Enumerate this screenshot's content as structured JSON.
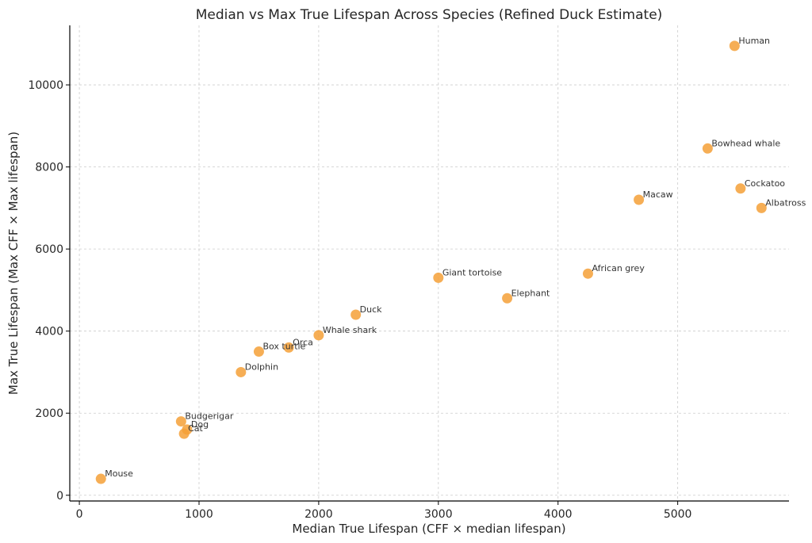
{
  "chart_data": {
    "type": "scatter",
    "title": "Median vs Max True Lifespan Across Species (Refined Duck Estimate)",
    "xlabel": "Median True Lifespan (CFF × median lifespan)",
    "ylabel": "Max True Lifespan (Max CFF × Max lifespan)",
    "xlim": [
      -80,
      5930
    ],
    "ylim": [
      -140,
      11450
    ],
    "xticks": [
      0,
      1000,
      2000,
      3000,
      4000,
      5000
    ],
    "yticks": [
      0,
      2000,
      4000,
      6000,
      8000,
      10000
    ],
    "xtick_labels": [
      "0",
      "1000",
      "2000",
      "3000",
      "4000",
      "5000"
    ],
    "ytick_labels": [
      "0",
      "2000",
      "4000",
      "6000",
      "8000",
      "10000"
    ],
    "grid": true,
    "marker_color": "#f5a037",
    "points": [
      {
        "label": "Human",
        "x": 5475,
        "y": 10950
      },
      {
        "label": "Bowhead whale",
        "x": 5250,
        "y": 8450
      },
      {
        "label": "Cockatoo",
        "x": 5525,
        "y": 7475
      },
      {
        "label": "Macaw",
        "x": 4675,
        "y": 7200
      },
      {
        "label": "Albatross",
        "x": 5700,
        "y": 7000
      },
      {
        "label": "African grey",
        "x": 4250,
        "y": 5400
      },
      {
        "label": "Giant tortoise",
        "x": 3000,
        "y": 5300
      },
      {
        "label": "Elephant",
        "x": 3575,
        "y": 4800
      },
      {
        "label": "Duck",
        "x": 2310,
        "y": 4400
      },
      {
        "label": "Whale shark",
        "x": 2000,
        "y": 3900
      },
      {
        "label": "Orca",
        "x": 1750,
        "y": 3600
      },
      {
        "label": "Box turtle",
        "x": 1500,
        "y": 3500
      },
      {
        "label": "Dolphin",
        "x": 1350,
        "y": 3000
      },
      {
        "label": "Budgerigar",
        "x": 850,
        "y": 1800
      },
      {
        "label": "Dog",
        "x": 900,
        "y": 1600
      },
      {
        "label": "Cat",
        "x": 875,
        "y": 1500
      },
      {
        "label": "Mouse",
        "x": 180,
        "y": 400
      }
    ]
  }
}
